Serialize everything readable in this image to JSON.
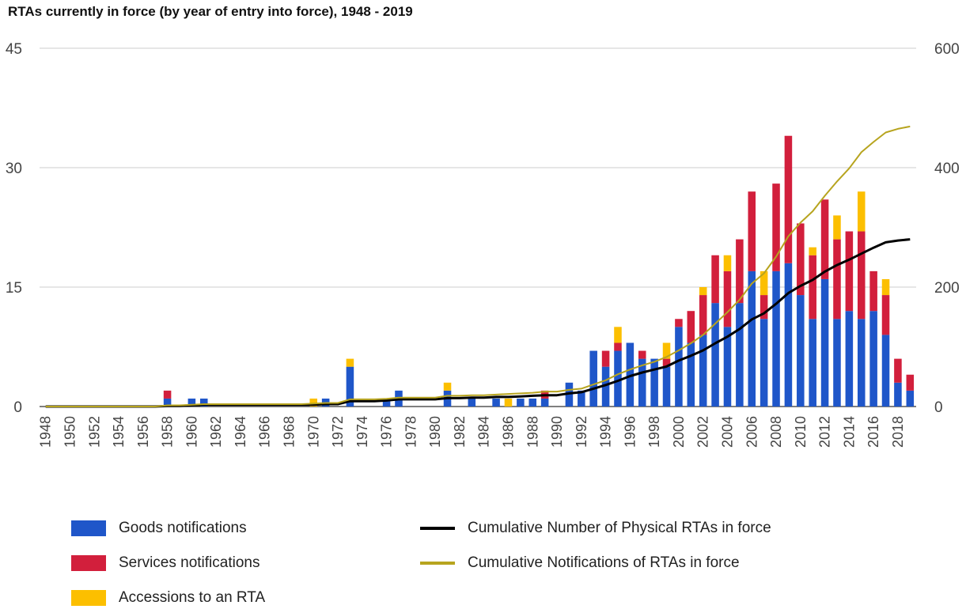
{
  "title": "RTAs currently in force (by year of entry into force), 1948 - 2019",
  "colors": {
    "goods": "#1f56c9",
    "services": "#d21f3c",
    "accessions": "#fcbf00",
    "physical_line": "#000000",
    "notifications_line": "#b7a41e",
    "grid": "#cccccc",
    "axis_text": "#444444"
  },
  "legend": [
    {
      "key": "goods",
      "label": "Goods notifications",
      "kind": "box"
    },
    {
      "key": "services",
      "label": "Services notifications",
      "kind": "box"
    },
    {
      "key": "accessions",
      "label": "Accessions to an RTA",
      "kind": "box"
    },
    {
      "key": "physical_line",
      "label": "Cumulative Number of Physical RTAs in force",
      "kind": "line"
    },
    {
      "key": "notifications_line",
      "label": "Cumulative Notifications of RTAs in force",
      "kind": "line"
    }
  ],
  "chart_data": {
    "type": "bar",
    "stacked": true,
    "title": "RTAs currently in force (by year of entry into force), 1948 - 2019",
    "x": [
      1948,
      1949,
      1950,
      1951,
      1952,
      1953,
      1954,
      1955,
      1956,
      1957,
      1958,
      1959,
      1960,
      1961,
      1962,
      1963,
      1964,
      1965,
      1966,
      1967,
      1968,
      1969,
      1970,
      1971,
      1972,
      1973,
      1974,
      1975,
      1976,
      1977,
      1978,
      1979,
      1980,
      1981,
      1982,
      1983,
      1984,
      1985,
      1986,
      1987,
      1988,
      1989,
      1990,
      1991,
      1992,
      1993,
      1994,
      1995,
      1996,
      1997,
      1998,
      1999,
      2000,
      2001,
      2002,
      2003,
      2004,
      2005,
      2006,
      2007,
      2008,
      2009,
      2010,
      2011,
      2012,
      2013,
      2014,
      2015,
      2016,
      2017,
      2018,
      2019
    ],
    "x_tick_labels": [
      "1948",
      "1950",
      "1952",
      "1954",
      "1956",
      "1958",
      "1960",
      "1962",
      "1964",
      "1966",
      "1968",
      "1970",
      "1972",
      "1974",
      "1976",
      "1978",
      "1980",
      "1982",
      "1984",
      "1986",
      "1988",
      "1990",
      "1992",
      "1994",
      "1996",
      "1998",
      "2000",
      "2002",
      "2004",
      "2006",
      "2008",
      "2010",
      "2012",
      "2014",
      "2016",
      "2018"
    ],
    "y_left_ticks": [
      0,
      15,
      30,
      45
    ],
    "y_left_range": [
      0,
      45
    ],
    "y_right_ticks": [
      0,
      200,
      400,
      600
    ],
    "y_right_range": [
      0,
      600
    ],
    "grid": true,
    "legend_position": "bottom",
    "series": [
      {
        "name": "Goods notifications",
        "key": "goods",
        "axis": "left",
        "values": [
          0,
          0,
          0,
          0,
          0,
          0,
          0,
          0,
          0,
          0,
          1,
          0,
          1,
          1,
          0,
          0,
          0,
          0,
          0,
          0,
          0,
          0,
          0,
          1,
          0,
          5,
          0,
          0,
          1,
          2,
          0,
          0,
          0,
          2,
          0,
          1,
          0,
          1,
          0,
          1,
          1,
          1,
          0,
          3,
          2,
          7,
          5,
          7,
          8,
          6,
          6,
          5,
          10,
          8,
          9,
          13,
          10,
          13,
          17,
          11,
          17,
          18,
          14,
          11,
          16,
          11,
          12,
          11,
          12,
          9,
          3,
          2
        ]
      },
      {
        "name": "Services notifications",
        "key": "services",
        "axis": "left",
        "values": [
          0,
          0,
          0,
          0,
          0,
          0,
          0,
          0,
          0,
          0,
          1,
          0,
          0,
          0,
          0,
          0,
          0,
          0,
          0,
          0,
          0,
          0,
          0,
          0,
          0,
          0,
          0,
          0,
          0,
          0,
          0,
          0,
          0,
          0,
          0,
          0,
          0,
          0,
          0,
          0,
          0,
          1,
          0,
          0,
          0,
          0,
          2,
          1,
          0,
          1,
          0,
          1,
          1,
          4,
          5,
          6,
          7,
          8,
          10,
          3,
          11,
          16,
          9,
          8,
          10,
          10,
          10,
          11,
          5,
          5,
          3,
          2
        ]
      },
      {
        "name": "Accessions to an RTA",
        "key": "accessions",
        "axis": "left",
        "values": [
          0,
          0,
          0,
          0,
          0,
          0,
          0,
          0,
          0,
          0,
          0,
          0,
          0,
          0,
          0,
          0,
          0,
          0,
          0,
          0,
          0,
          0,
          1,
          0,
          0,
          1,
          0,
          0,
          0,
          0,
          0,
          0,
          0,
          1,
          0,
          0,
          0,
          0,
          1,
          0,
          0,
          0,
          0,
          0,
          0,
          0,
          0,
          2,
          0,
          0,
          0,
          2,
          0,
          0,
          1,
          0,
          2,
          0,
          0,
          3,
          0,
          0,
          0,
          1,
          0,
          3,
          0,
          5,
          0,
          2,
          0,
          0
        ]
      },
      {
        "name": "Cumulative Number of Physical RTAs in force",
        "key": "physical_line",
        "axis": "right",
        "type": "line",
        "values": [
          0,
          0,
          0,
          0,
          0,
          0,
          0,
          0,
          0,
          0,
          1,
          1,
          2,
          3,
          3,
          3,
          3,
          3,
          3,
          3,
          3,
          3,
          3,
          4,
          4,
          9,
          9,
          9,
          10,
          12,
          12,
          12,
          12,
          14,
          14,
          15,
          15,
          16,
          16,
          17,
          18,
          19,
          19,
          22,
          24,
          30,
          36,
          43,
          51,
          57,
          62,
          67,
          77,
          85,
          94,
          106,
          117,
          130,
          146,
          156,
          172,
          190,
          202,
          212,
          226,
          237,
          246,
          256,
          266,
          275,
          278,
          280
        ]
      },
      {
        "name": "Cumulative Notifications of RTAs in force",
        "key": "notifications_line",
        "axis": "right",
        "type": "line",
        "values": [
          0,
          0,
          0,
          0,
          0,
          0,
          0,
          0,
          0,
          0,
          2,
          2,
          3,
          4,
          4,
          4,
          4,
          4,
          4,
          4,
          4,
          4,
          5,
          6,
          6,
          12,
          12,
          12,
          13,
          15,
          15,
          15,
          15,
          18,
          18,
          19,
          19,
          20,
          21,
          22,
          23,
          25,
          25,
          28,
          30,
          37,
          44,
          54,
          62,
          69,
          75,
          83,
          94,
          106,
          120,
          139,
          158,
          179,
          206,
          223,
          251,
          285,
          308,
          327,
          353,
          377,
          399,
          426,
          443,
          459,
          465,
          469
        ]
      }
    ]
  }
}
